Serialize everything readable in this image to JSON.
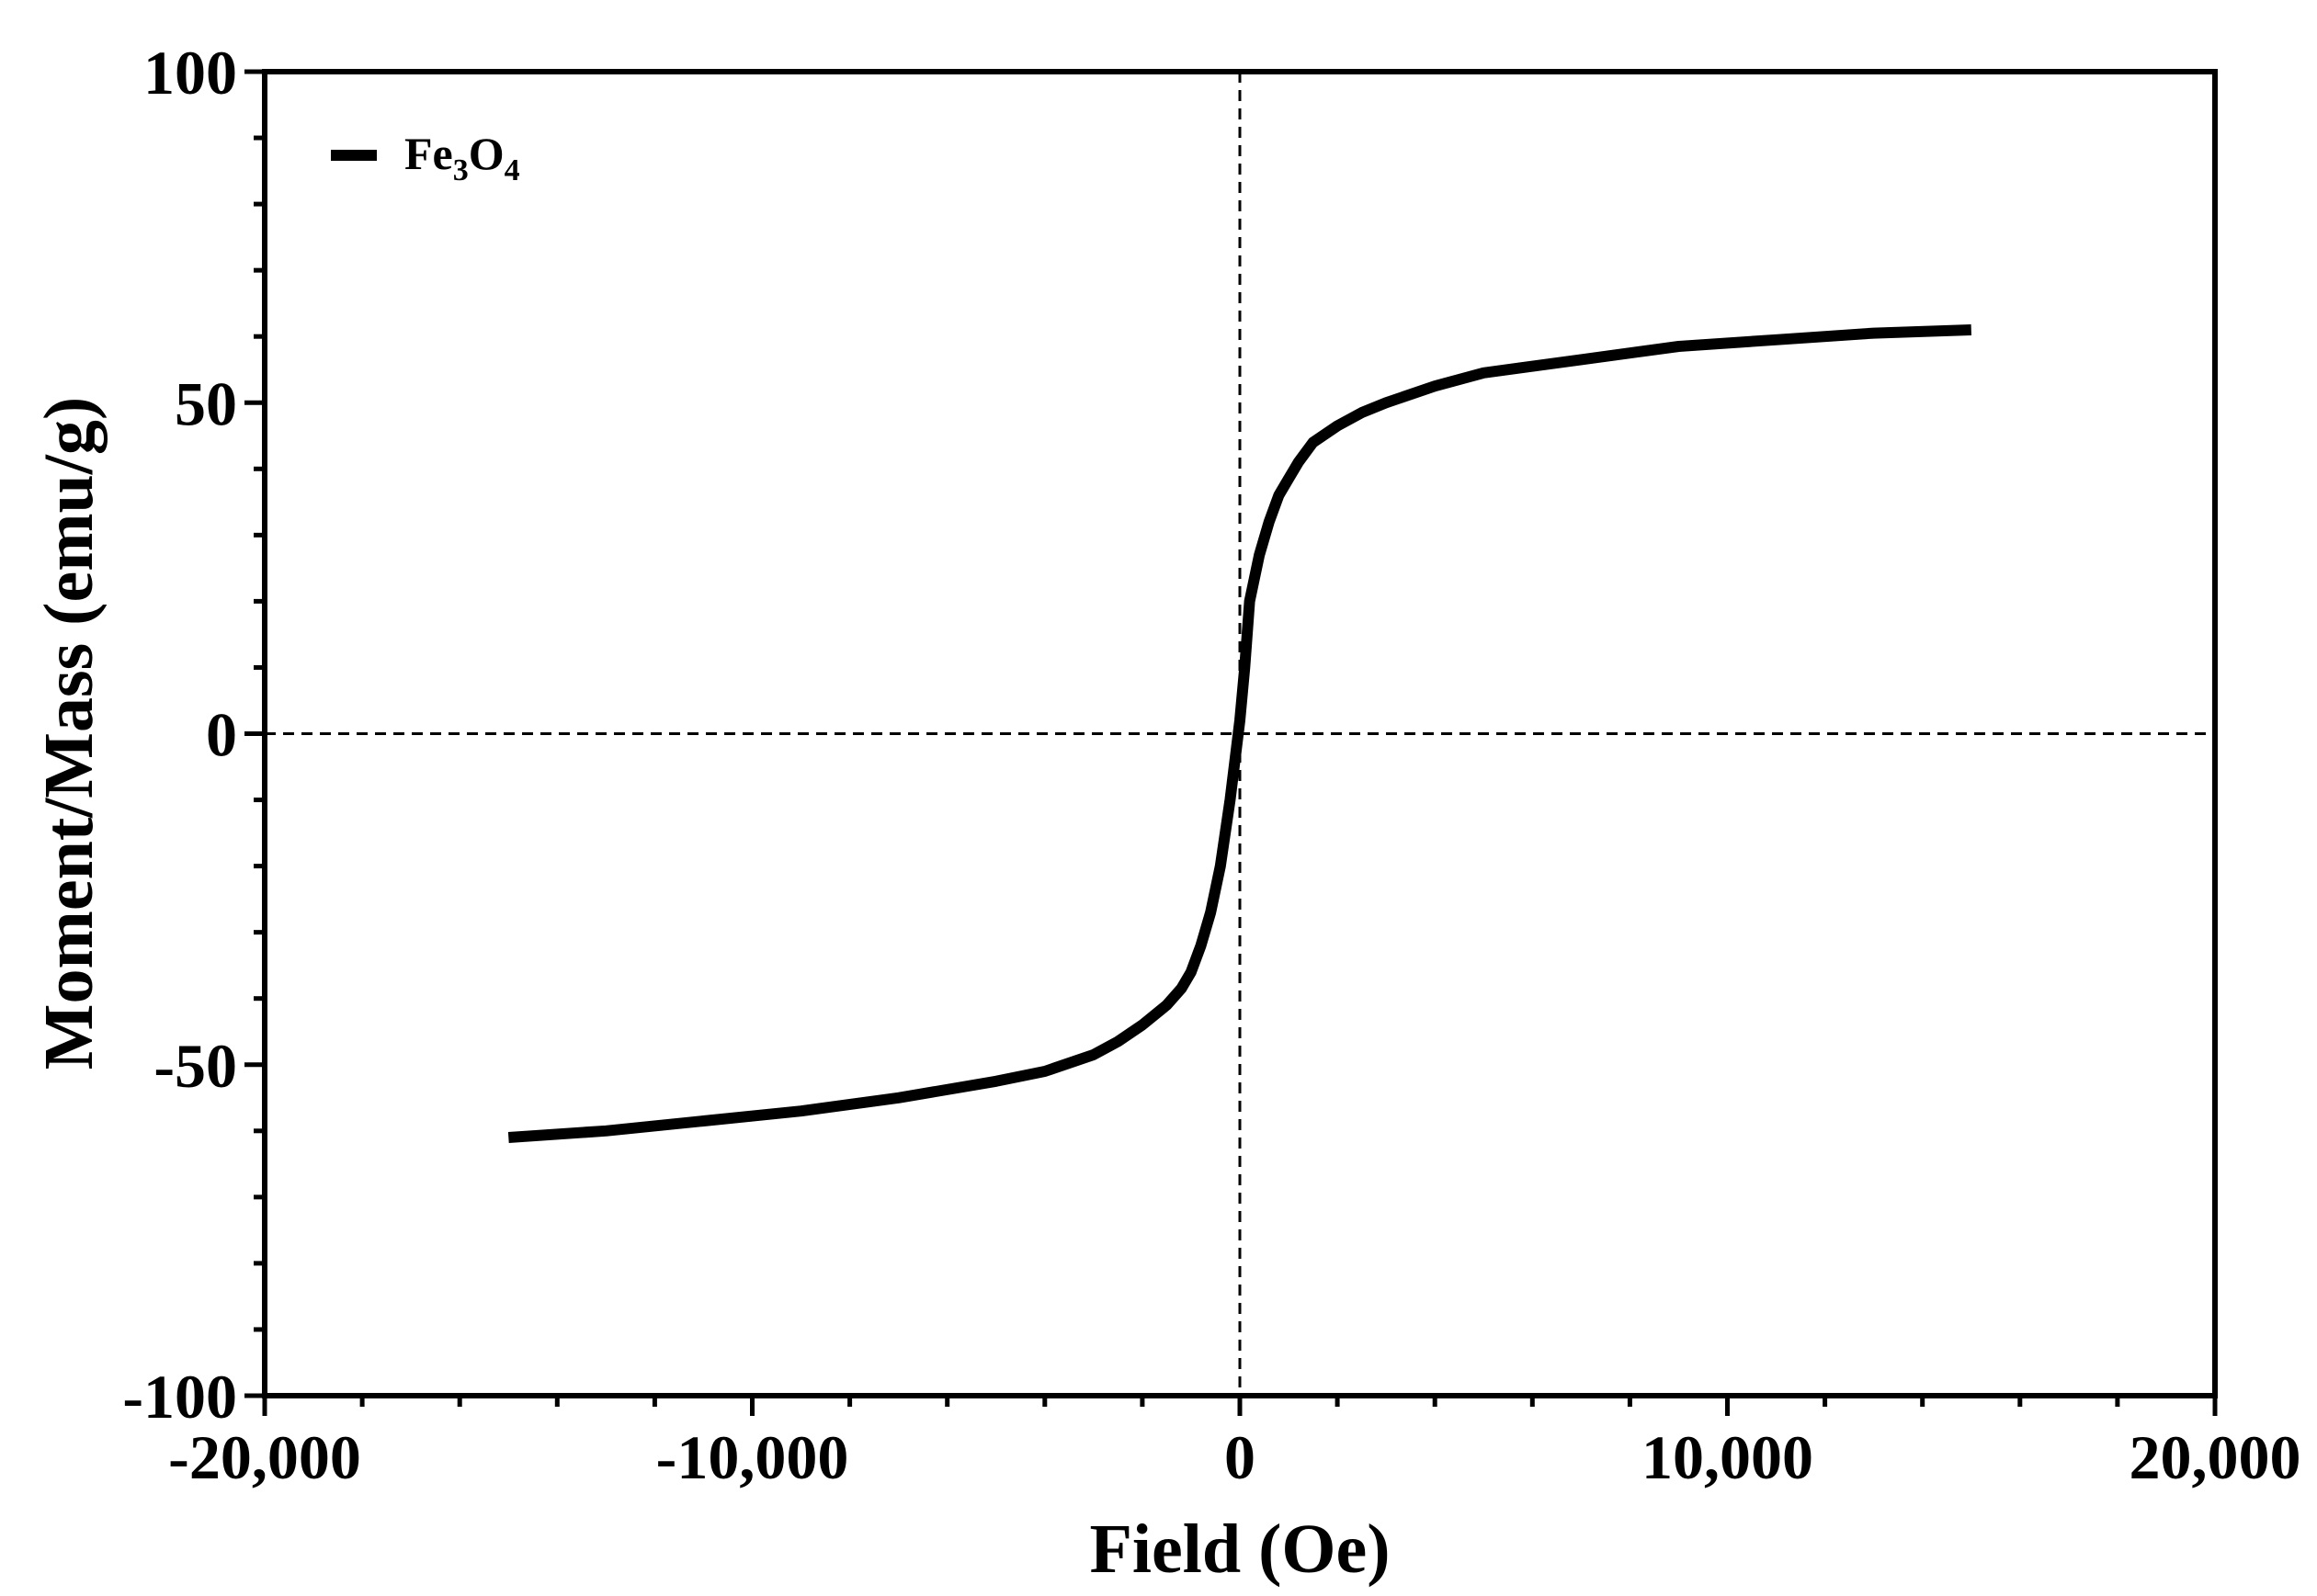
{
  "chart_data": {
    "type": "line",
    "title": "",
    "xlabel": "Field (Oe)",
    "ylabel": "Moment/Mass (emu/g)",
    "xlim": [
      -20000,
      20000
    ],
    "ylim": [
      -100,
      100
    ],
    "x_ticks": [
      -20000,
      -10000,
      0,
      10000,
      20000
    ],
    "x_tick_labels": [
      "-20,000",
      "-10,000",
      "0",
      "10,000",
      "20,000"
    ],
    "x_minor_step": 2000,
    "y_ticks": [
      -100,
      -50,
      0,
      50,
      100
    ],
    "y_tick_labels": [
      "-100",
      "-50",
      "0",
      "50",
      "100"
    ],
    "y_minor_step": 10,
    "zero_lines": "dashed",
    "grid": false,
    "legend": {
      "position": "top-left",
      "entries": [
        {
          "formula": [
            "Fe",
            "3",
            "O",
            "4"
          ],
          "color": "#000000"
        }
      ]
    },
    "series": [
      {
        "name": "Fe3O4",
        "color": "#000000",
        "x": [
          -15000,
          -13000,
          -11000,
          -9000,
          -7000,
          -5000,
          -4000,
          -3000,
          -2500,
          -2000,
          -1500,
          -1200,
          -1000,
          -800,
          -600,
          -400,
          -200,
          -100,
          0,
          100,
          200,
          400,
          600,
          800,
          1000,
          1200,
          1500,
          2000,
          2500,
          3000,
          4000,
          5000,
          7000,
          9000,
          11000,
          13000,
          15000
        ],
        "y": [
          -61,
          -60,
          -58.5,
          -57,
          -55,
          -52.5,
          -51,
          -48.5,
          -46.5,
          -44,
          -41,
          -38.5,
          -36,
          -32,
          -27,
          -20,
          -10,
          -4,
          2,
          10,
          20,
          27,
          32,
          36,
          38.5,
          41,
          44,
          46.5,
          48.5,
          50,
          52.5,
          54.5,
          56.5,
          58.5,
          59.5,
          60.5,
          61
        ]
      }
    ]
  }
}
